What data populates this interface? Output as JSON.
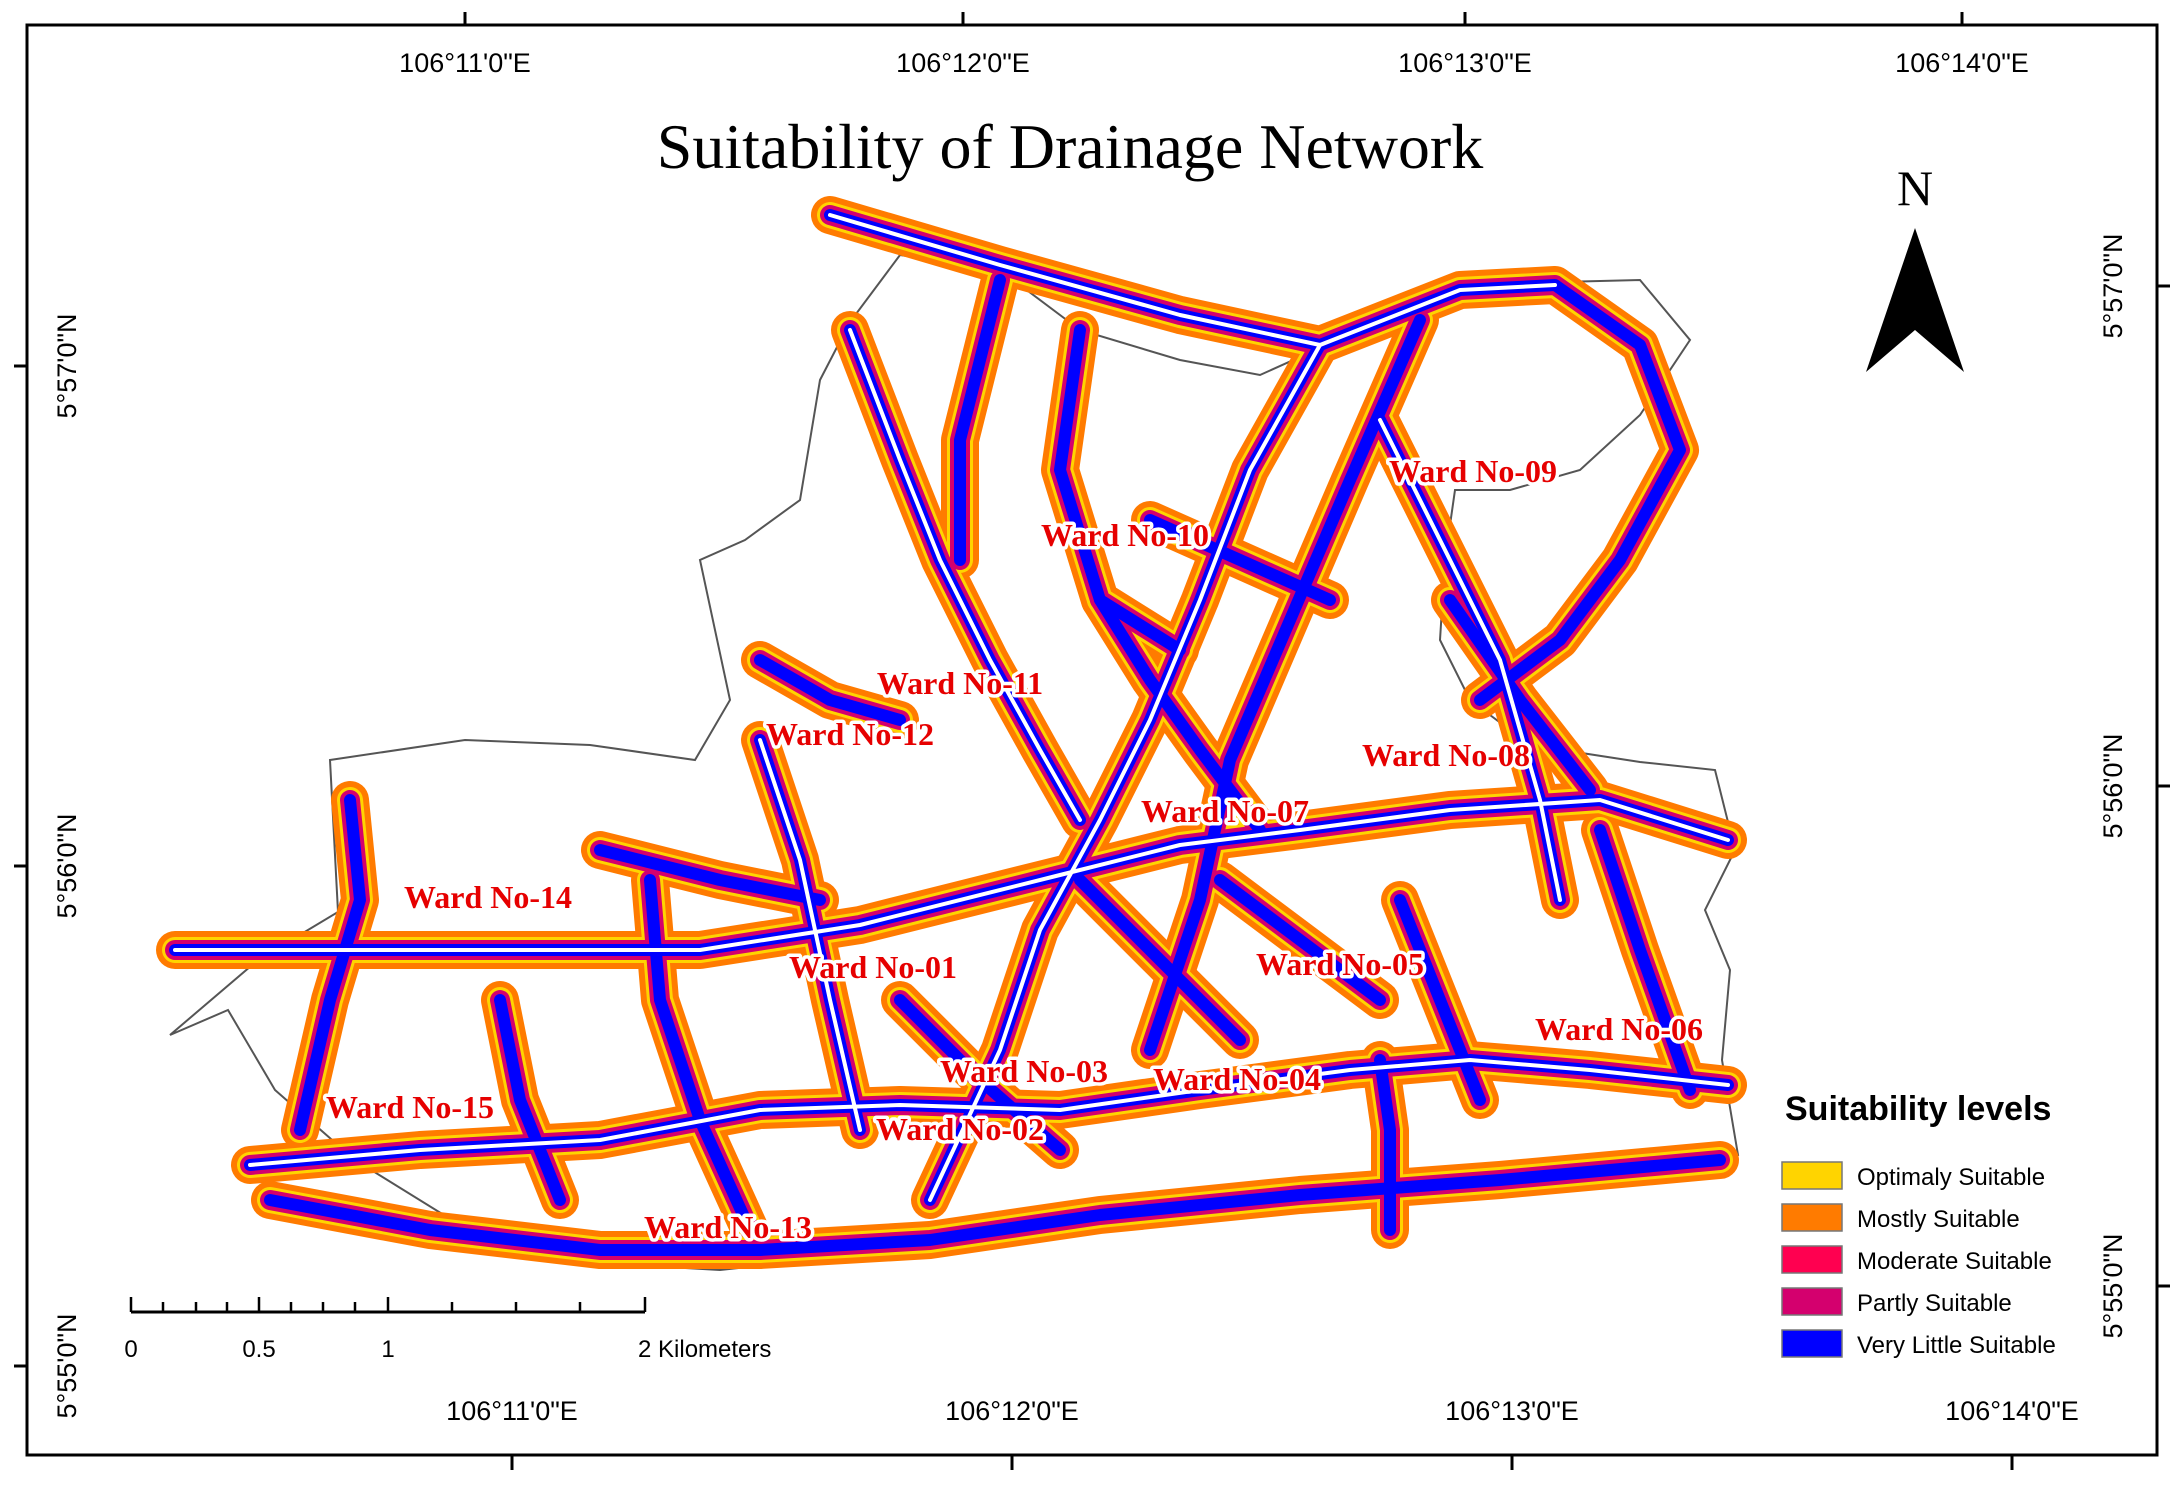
{
  "title": "Suitability of Drainage Network",
  "north_arrow": {
    "label": "N"
  },
  "graticule": {
    "top": [
      "106°11'0\"E",
      "106°12'0\"E",
      "106°13'0\"E",
      "106°14'0\"E"
    ],
    "bottom": [
      "106°11'0\"E",
      "106°12'0\"E",
      "106°13'0\"E",
      "106°14'0\"E"
    ],
    "left": [
      "5°57'0\"N",
      "5°56'0\"N",
      "5°55'0\"N"
    ],
    "right": [
      "5°57'0\"N",
      "5°56'0\"N",
      "5°55'0\"N"
    ]
  },
  "wards": [
    "Ward No-01",
    "Ward No-02",
    "Ward No-03",
    "Ward No-04",
    "Ward No-05",
    "Ward No-06",
    "Ward No-07",
    "Ward No-08",
    "Ward No-09",
    "Ward No-10",
    "Ward No-11",
    "Ward No-12",
    "Ward No-13",
    "Ward No-14",
    "Ward No-15"
  ],
  "legend": {
    "title": "Suitability levels",
    "items": [
      {
        "label": "Optimaly Suitable",
        "color": "#ffd400"
      },
      {
        "label": "Mostly Suitable",
        "color": "#ff7b00"
      },
      {
        "label": "Moderate Suitable",
        "color": "#ff0050"
      },
      {
        "label": "Partly Suitable",
        "color": "#d4006e"
      },
      {
        "label": "Very Little Suitable",
        "color": "#0000ff"
      }
    ]
  },
  "scale_bar": {
    "labels": [
      "0",
      "0.5",
      "1",
      "2 Kilometers"
    ]
  }
}
